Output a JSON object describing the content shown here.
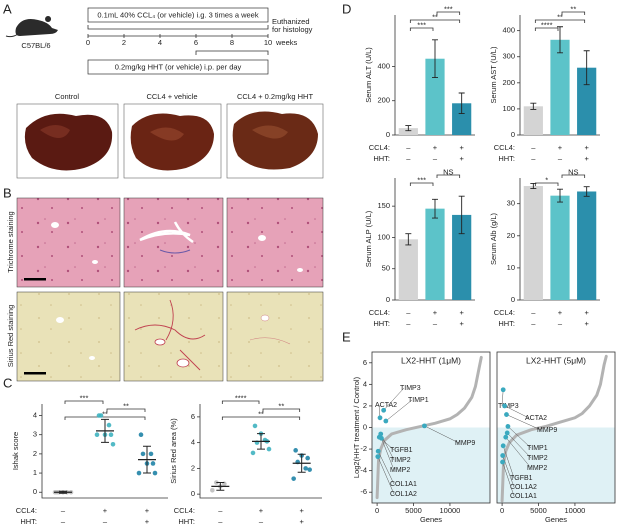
{
  "panel_labels": [
    "A",
    "B",
    "C",
    "D",
    "E"
  ],
  "panel_a": {
    "strain": "C57BL/6",
    "ccl4_regimen": "0.1mL 40% CCL₄ (or vehicle) i.g. 3 times a week",
    "hht_regimen": "0.2mg/kg HHT (or vehicle) i.p. per day",
    "endpoint_1": "Euthanized",
    "endpoint_2": "for histology",
    "time_unit": "weeks",
    "time_ticks": [
      0,
      2,
      4,
      6,
      8,
      10
    ],
    "groups": [
      "Control",
      "CCL4 + vehicle",
      "CCL4 + 0.2mg/kg HHT"
    ]
  },
  "panel_b": {
    "stains": [
      "Trichrome staining",
      "Sirius Red staining"
    ]
  },
  "chart_data": [
    {
      "type": "dotplot",
      "y_label": "Ishak score",
      "ylim": [
        -0.3,
        4.6
      ],
      "yticks": [
        0,
        1,
        2,
        3,
        4
      ],
      "factors": [
        {
          "name": "CCL4:",
          "levels": [
            "–",
            "+",
            "+"
          ]
        },
        {
          "name": "HHT:",
          "levels": [
            "–",
            "–",
            "+"
          ]
        }
      ],
      "groups": [
        {
          "color": "#bdbdbd",
          "values": [
            0,
            0,
            0,
            0,
            0,
            0
          ],
          "mean": 0,
          "sd": 0.05
        },
        {
          "color": "#3fb3c0",
          "values": [
            3,
            4,
            3,
            3.5,
            2.5,
            4,
            3
          ],
          "mean": 3.2,
          "sd": 0.6
        },
        {
          "color": "#1f83a6",
          "values": [
            1,
            2,
            1.5,
            2,
            1,
            3,
            1.5
          ],
          "mean": 1.7,
          "sd": 0.7
        }
      ],
      "significance": [
        {
          "pair": [
            0,
            1
          ],
          "label": "***"
        },
        {
          "pair": [
            1,
            2
          ],
          "label": "**"
        },
        {
          "pair": [
            0,
            2
          ],
          "label": "**"
        }
      ]
    },
    {
      "type": "dotplot",
      "y_label": "Sirius Red area (%)",
      "ylim": [
        -0.3,
        7
      ],
      "yticks": [
        0,
        2,
        4,
        6
      ],
      "factors": [
        {
          "name": "CCL4:",
          "levels": [
            "–",
            "+",
            "+"
          ]
        },
        {
          "name": "HHT:",
          "levels": [
            "–",
            "–",
            "+"
          ]
        }
      ],
      "groups": [
        {
          "color": "#bdbdbd",
          "values": [
            0.3,
            0.9,
            0.6,
            0.8
          ],
          "mean": 0.6,
          "sd": 0.3
        },
        {
          "color": "#3fb3c0",
          "values": [
            3.2,
            4,
            4.7,
            4.2,
            3.5,
            5.3,
            4.1
          ],
          "mean": 4.1,
          "sd": 0.6
        },
        {
          "color": "#1f83a6",
          "values": [
            1.2,
            2.5,
            3,
            2,
            1.9,
            3.4,
            2.8
          ],
          "mean": 2.4,
          "sd": 0.7
        }
      ],
      "significance": [
        {
          "pair": [
            0,
            1
          ],
          "label": "****"
        },
        {
          "pair": [
            1,
            2
          ],
          "label": "**"
        },
        {
          "pair": [
            0,
            2
          ],
          "label": "**"
        }
      ]
    },
    {
      "type": "bar",
      "y_label": "Serum ALT (U/L)",
      "ylim": [
        0,
        700
      ],
      "yticks": [
        0,
        200,
        400
      ],
      "colors": [
        "#d4d4d4",
        "#5cc3c9",
        "#2b8fac"
      ],
      "values": [
        40,
        445,
        185
      ],
      "errors": [
        15,
        110,
        60
      ],
      "factors": [
        {
          "name": "CCL4:",
          "levels": [
            "–",
            "+",
            "+"
          ]
        },
        {
          "name": "HHT:",
          "levels": [
            "–",
            "–",
            "+"
          ]
        }
      ],
      "significance": [
        {
          "pair": [
            1,
            2
          ],
          "label": "***"
        },
        {
          "pair": [
            0,
            2
          ],
          "label": "**"
        },
        {
          "pair": [
            0,
            1
          ],
          "label": "***"
        }
      ]
    },
    {
      "type": "bar",
      "y_label": "Serum AST (U/L)",
      "ylim": [
        0,
        460
      ],
      "yticks": [
        0,
        100,
        200,
        300,
        400
      ],
      "colors": [
        "#d4d4d4",
        "#5cc3c9",
        "#2b8fac"
      ],
      "values": [
        110,
        365,
        258
      ],
      "errors": [
        12,
        50,
        65
      ],
      "factors": [
        {
          "name": "CCL4:",
          "levels": [
            "–",
            "+",
            "+"
          ]
        },
        {
          "name": "HHT:",
          "levels": [
            "–",
            "–",
            "+"
          ]
        }
      ],
      "significance": [
        {
          "pair": [
            1,
            2
          ],
          "label": "**"
        },
        {
          "pair": [
            0,
            2
          ],
          "label": "**"
        },
        {
          "pair": [
            0,
            1
          ],
          "label": "****"
        }
      ]
    },
    {
      "type": "bar",
      "y_label": "Serum ALP (U/L)",
      "ylim": [
        0,
        195
      ],
      "yticks": [
        0,
        50,
        100,
        150
      ],
      "colors": [
        "#d4d4d4",
        "#5cc3c9",
        "#2b8fac"
      ],
      "values": [
        97,
        146,
        136
      ],
      "errors": [
        9,
        15,
        30
      ],
      "factors": [
        {
          "name": "CCL4:",
          "levels": [
            "–",
            "+",
            "+"
          ]
        },
        {
          "name": "HHT:",
          "levels": [
            "–",
            "–",
            "+"
          ]
        }
      ],
      "significance": [
        {
          "pair": [
            1,
            2
          ],
          "label": "NS"
        },
        {
          "pair": [
            0,
            1
          ],
          "label": "***"
        }
      ]
    },
    {
      "type": "bar",
      "y_label": "Serum Alb (g/L)",
      "ylim": [
        0,
        38
      ],
      "yticks": [
        0,
        10,
        20,
        30
      ],
      "colors": [
        "#d4d4d4",
        "#5cc3c9",
        "#2b8fac"
      ],
      "values": [
        35.5,
        32.5,
        33.8
      ],
      "errors": [
        0.8,
        2,
        1.5
      ],
      "factors": [
        {
          "name": "CCL4:",
          "levels": [
            "–",
            "+",
            "+"
          ]
        },
        {
          "name": "HHT:",
          "levels": [
            "–",
            "–",
            "+"
          ]
        }
      ],
      "significance": [
        {
          "pair": [
            1,
            2
          ],
          "label": "NS"
        },
        {
          "pair": [
            0,
            1
          ],
          "label": "*"
        }
      ]
    },
    {
      "type": "rank",
      "title": "LX2-HHT (1μM)",
      "y_label": "Log2(HHT treatment / Control)",
      "x_label": "Genes",
      "xlim": [
        -700,
        15500
      ],
      "xticks": [
        0,
        5000,
        10000
      ],
      "ylim": [
        -7,
        7
      ],
      "yticks": [
        -6,
        -4,
        -2,
        0,
        2,
        4,
        6
      ],
      "color": "#b3b3b3",
      "gene_color": "#3aa9bf",
      "x": [
        0,
        200,
        500,
        1000,
        2000,
        4000,
        6000,
        8000,
        10000,
        11000,
        12000,
        13000,
        13500,
        14000,
        14300
      ],
      "values": [
        -6.5,
        -3,
        -2,
        -1.2,
        -0.6,
        -0.2,
        0.1,
        0.4,
        0.8,
        1.2,
        1.8,
        2.8,
        3.8,
        5.5,
        6.5
      ],
      "genes": [
        {
          "name": "ACTA2",
          "x": 400,
          "y": 0.9
        },
        {
          "name": "TIMP3",
          "x": 900,
          "y": 1.6
        },
        {
          "name": "TIMP1",
          "x": 1200,
          "y": 0.6
        },
        {
          "name": "MMP9",
          "x": 6500,
          "y": 0.15
        },
        {
          "name": "TGFB1",
          "x": 300,
          "y": -0.9
        },
        {
          "name": "TIMP2",
          "x": 500,
          "y": -0.6
        },
        {
          "name": "MMP2",
          "x": 600,
          "y": -1.0
        },
        {
          "name": "COL1A1",
          "x": 150,
          "y": -2.2
        },
        {
          "name": "COL1A2",
          "x": 100,
          "y": -2.7
        }
      ]
    },
    {
      "type": "rank",
      "title": "LX2-HHT (5μM)",
      "x_label": "Genes",
      "xlim": [
        -700,
        15500
      ],
      "xticks": [
        0,
        5000,
        10000
      ],
      "ylim": [
        -7,
        7
      ],
      "color": "#b3b3b3",
      "gene_color": "#3aa9bf",
      "x": [
        0,
        200,
        500,
        1000,
        2000,
        4000,
        6000,
        8000,
        10000,
        11000,
        12000,
        13000,
        13500,
        14000,
        14300
      ],
      "values": [
        -6.8,
        -3.3,
        -2.2,
        -1.4,
        -0.7,
        -0.2,
        0.1,
        0.5,
        0.9,
        1.3,
        2,
        3,
        4,
        5.8,
        6.6
      ],
      "genes": [
        {
          "name": "TIMP3",
          "x": 150,
          "y": 3.5
        },
        {
          "name": "ACTA2",
          "x": 350,
          "y": 2.0
        },
        {
          "name": "MMP9",
          "x": 600,
          "y": 1.2
        },
        {
          "name": "TIMP1",
          "x": 800,
          "y": 0.1
        },
        {
          "name": "TIMP2",
          "x": 700,
          "y": -0.5
        },
        {
          "name": "MMP2",
          "x": 500,
          "y": -0.9
        },
        {
          "name": "TGFB1",
          "x": 150,
          "y": -1.7
        },
        {
          "name": "COL1A2",
          "x": 80,
          "y": -2.6
        },
        {
          "name": "COL1A1",
          "x": 60,
          "y": -3.2
        }
      ]
    }
  ]
}
